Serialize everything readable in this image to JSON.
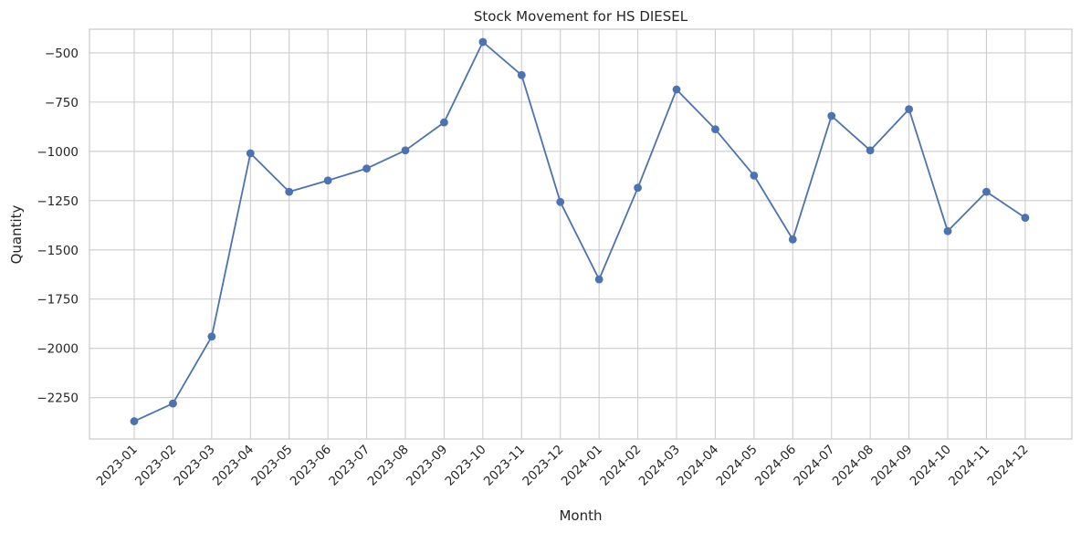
{
  "chart_data": {
    "type": "line",
    "title": "Stock Movement for HS DIESEL",
    "xlabel": "Month",
    "ylabel": "Quantity",
    "categories": [
      "2023-01",
      "2023-02",
      "2023-03",
      "2023-04",
      "2023-05",
      "2023-06",
      "2023-07",
      "2023-08",
      "2023-09",
      "2023-10",
      "2023-11",
      "2023-12",
      "2024-01",
      "2024-02",
      "2024-03",
      "2024-04",
      "2024-05",
      "2024-06",
      "2024-07",
      "2024-08",
      "2024-09",
      "2024-10",
      "2024-11",
      "2024-12"
    ],
    "series": [
      {
        "values": [
          -2370,
          -2280,
          -1940,
          -1010,
          -1205,
          -1148,
          -1087,
          -995,
          -853,
          -445,
          -613,
          -1257,
          -1650,
          -1185,
          -686,
          -888,
          -1123,
          -1447,
          -820,
          -995,
          -786,
          -1405,
          -1205,
          -1337
        ]
      }
    ],
    "ylim": [
      -2460,
      -380
    ],
    "yticks": [
      -2250,
      -2000,
      -1750,
      -1500,
      -1250,
      -1000,
      -750,
      -500
    ],
    "ytick_labels": [
      "−2250",
      "−2000",
      "−1750",
      "−1500",
      "−1250",
      "−1000",
      "−750",
      "−500"
    ],
    "grid": true,
    "line_color": "#4c72b0",
    "marker": "circle"
  }
}
